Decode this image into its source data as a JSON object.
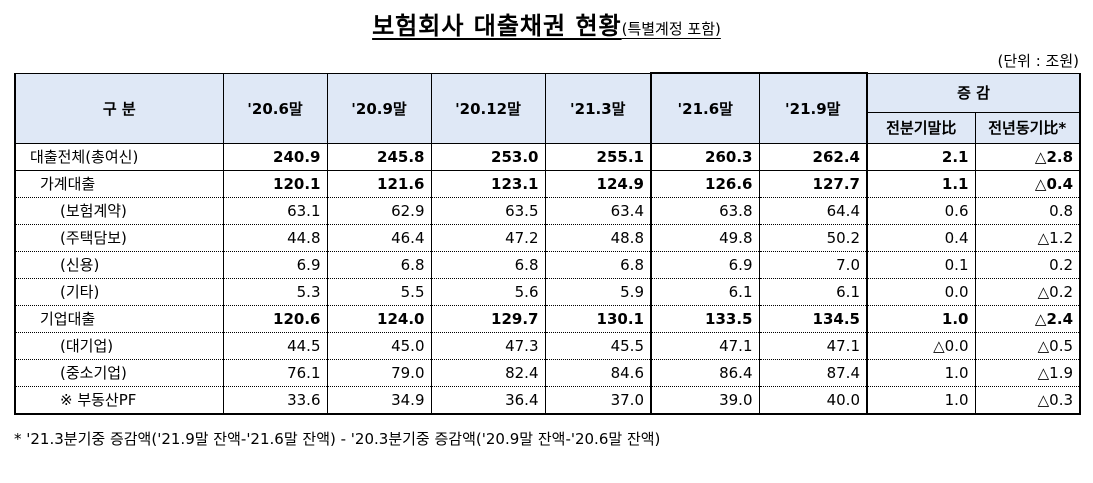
{
  "title": "보험회사 대출채권 현황",
  "subtitle": "(특별계정 포함)",
  "unit": "(단위 : 조원)",
  "header": {
    "category": "구  분",
    "periods": [
      "'20.6말",
      "'20.9말",
      "'20.12말",
      "'21.3말",
      "'21.6말",
      "'21.9말"
    ],
    "change_group": "증    감",
    "change_cols": [
      "전분기말比",
      "전년동기比*"
    ]
  },
  "rows": [
    {
      "label": "대출전체(총여신)",
      "values": [
        "240.9",
        "245.8",
        "253.0",
        "255.1",
        "260.3",
        "262.4",
        "2.1",
        "△2.8"
      ]
    },
    {
      "label": "가계대출",
      "values": [
        "120.1",
        "121.6",
        "123.1",
        "124.9",
        "126.6",
        "127.7",
        "1.1",
        "△0.4"
      ]
    },
    {
      "label": "(보험계약)",
      "values": [
        "63.1",
        "62.9",
        "63.5",
        "63.4",
        "63.8",
        "64.4",
        "0.6",
        "0.8"
      ]
    },
    {
      "label": "(주택담보)",
      "values": [
        "44.8",
        "46.4",
        "47.2",
        "48.8",
        "49.8",
        "50.2",
        "0.4",
        "△1.2"
      ]
    },
    {
      "label": "(신용)",
      "values": [
        "6.9",
        "6.8",
        "6.8",
        "6.8",
        "6.9",
        "7.0",
        "0.1",
        "0.2"
      ]
    },
    {
      "label": "(기타)",
      "values": [
        "5.3",
        "5.5",
        "5.6",
        "5.9",
        "6.1",
        "6.1",
        "0.0",
        "△0.2"
      ]
    },
    {
      "label": "기업대출",
      "values": [
        "120.6",
        "124.0",
        "129.7",
        "130.1",
        "133.5",
        "134.5",
        "1.0",
        "△2.4"
      ]
    },
    {
      "label": "(대기업)",
      "values": [
        "44.5",
        "45.0",
        "47.3",
        "45.5",
        "47.1",
        "47.1",
        "△0.0",
        "△0.5"
      ]
    },
    {
      "label": "(중소기업)",
      "values": [
        "76.1",
        "79.0",
        "82.4",
        "84.6",
        "86.4",
        "87.4",
        "1.0",
        "△1.9"
      ]
    },
    {
      "label": "※ 부동산PF",
      "values": [
        "33.6",
        "34.9",
        "36.4",
        "37.0",
        "39.0",
        "40.0",
        "1.0",
        "△0.3"
      ]
    }
  ],
  "footnote": "* '21.3분기중 증감액('21.9말 잔액-'21.6말 잔액) - '20.3분기중 증감액('20.9말 잔액-'20.6말 잔액)"
}
